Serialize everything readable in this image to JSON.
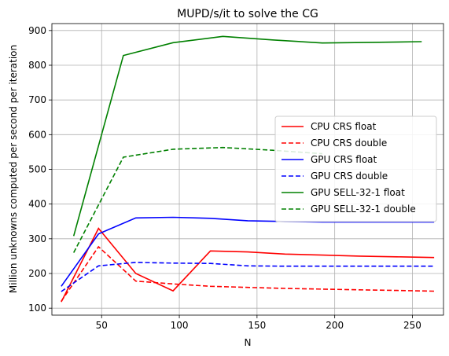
{
  "chart_data": {
    "type": "line",
    "title": "MUPD/s/it to solve the CG",
    "xlabel": "N",
    "ylabel": "Million unknowns computed per second per iteration",
    "xlim": [
      18,
      270
    ],
    "ylim": [
      80,
      920
    ],
    "xticks": [
      50,
      100,
      150,
      200,
      250
    ],
    "yticks": [
      100,
      200,
      300,
      400,
      500,
      600,
      700,
      800,
      900
    ],
    "grid": true,
    "legend_position": "center-right",
    "series": [
      {
        "name": "CPU CRS float",
        "color": "#ff0000",
        "dash": "solid",
        "x": [
          24,
          48,
          72,
          96,
          120,
          144,
          168,
          192,
          216,
          240,
          264
        ],
        "y": [
          118,
          330,
          200,
          150,
          265,
          262,
          256,
          253,
          250,
          248,
          246
        ]
      },
      {
        "name": "CPU CRS double",
        "color": "#ff0000",
        "dash": "dashed",
        "x": [
          24,
          48,
          72,
          96,
          120,
          144,
          168,
          192,
          216,
          240,
          264
        ],
        "y": [
          120,
          277,
          178,
          170,
          163,
          160,
          157,
          155,
          153,
          151,
          149
        ]
      },
      {
        "name": "GPU CRS float",
        "color": "#0000ff",
        "dash": "solid",
        "x": [
          24,
          48,
          72,
          96,
          120,
          144,
          168,
          192,
          216,
          240,
          264
        ],
        "y": [
          163,
          314,
          360,
          362,
          359,
          352,
          350,
          348,
          348,
          348,
          348
        ]
      },
      {
        "name": "GPU CRS double",
        "color": "#0000ff",
        "dash": "dashed",
        "x": [
          24,
          48,
          72,
          96,
          120,
          144,
          168,
          192,
          216,
          240,
          264
        ],
        "y": [
          148,
          222,
          232,
          230,
          229,
          222,
          221,
          221,
          221,
          221,
          221
        ]
      },
      {
        "name": "GPU SELL-32-1 float",
        "color": "#008000",
        "dash": "solid",
        "x": [
          32,
          64,
          96,
          128,
          160,
          192,
          224,
          256
        ],
        "y": [
          308,
          828,
          865,
          883,
          873,
          864,
          866,
          868
        ]
      },
      {
        "name": "GPU SELL-32-1 double",
        "color": "#008000",
        "dash": "dashed",
        "x": [
          32,
          64,
          96,
          128,
          160,
          192
        ],
        "y": [
          260,
          535,
          558,
          563,
          555,
          545
        ]
      }
    ]
  }
}
